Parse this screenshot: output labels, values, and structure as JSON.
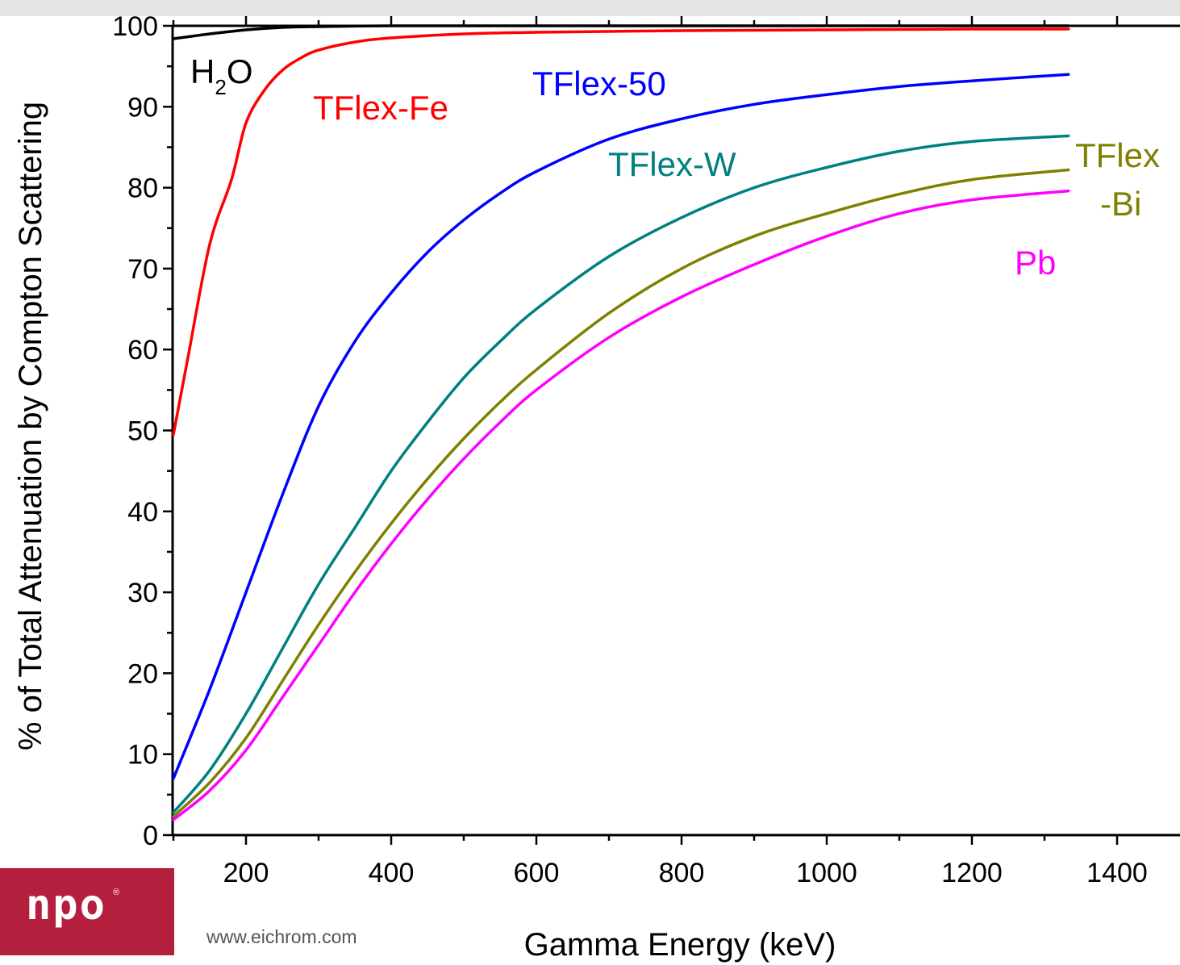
{
  "chart_data": {
    "type": "line",
    "xlabel": "Gamma Energy (keV)",
    "ylabel": "% of Total Attenuation by Compton Scattering",
    "xlim": [
      100,
      1463
    ],
    "ylim": [
      0,
      100
    ],
    "x_ticks": [
      "200",
      "400",
      "600",
      "800",
      "1000",
      "1200",
      "1400"
    ],
    "y_ticks": [
      "0",
      "10",
      "20",
      "30",
      "40",
      "50",
      "60",
      "70",
      "80",
      "90",
      "100"
    ],
    "annotations": {
      "h2o": {
        "main": "H",
        "sub": "2",
        "tail": "O"
      },
      "tflex_fe": "TFlex-Fe",
      "tflex_50": "TFlex-50",
      "tflex_w": "TFlex-W",
      "tflex_bi_1": "TFlex",
      "tflex_bi_2": "-Bi",
      "pb": "Pb"
    },
    "series": [
      {
        "key": "h2o",
        "color": "#000000",
        "x": [
          100,
          150,
          200,
          250,
          300,
          400,
          600,
          800,
          1000,
          1200,
          1333
        ],
        "y": [
          98.4,
          99.0,
          99.5,
          99.8,
          99.9,
          100,
          100,
          100,
          100,
          100,
          100
        ]
      },
      {
        "key": "tflex_fe",
        "color": "#ff0000",
        "x": [
          100,
          120,
          150,
          180,
          200,
          225,
          250,
          275,
          300,
          350,
          400,
          500,
          600,
          800,
          1000,
          1200,
          1333
        ],
        "y": [
          49.5,
          59,
          73,
          81,
          88,
          92,
          94.5,
          96,
          97,
          98,
          98.5,
          99,
          99.2,
          99.4,
          99.5,
          99.6,
          99.6
        ]
      },
      {
        "key": "tflex_50",
        "color": "#0000ff",
        "x": [
          100,
          150,
          200,
          250,
          300,
          350,
          400,
          450,
          500,
          550,
          600,
          700,
          800,
          900,
          1000,
          1100,
          1200,
          1333
        ],
        "y": [
          7,
          18,
          30,
          42,
          53,
          61,
          67,
          72,
          76,
          79.3,
          82,
          86,
          88.5,
          90.3,
          91.5,
          92.5,
          93.2,
          94
        ]
      },
      {
        "key": "tflex_w",
        "color": "#008080",
        "x": [
          100,
          150,
          200,
          250,
          300,
          350,
          400,
          450,
          500,
          550,
          600,
          700,
          800,
          900,
          1000,
          1100,
          1200,
          1333
        ],
        "y": [
          2.8,
          8,
          15,
          23,
          31,
          38,
          45,
          51,
          56.5,
          61,
          65,
          71.5,
          76.3,
          80,
          82.5,
          84.5,
          85.7,
          86.4
        ]
      },
      {
        "key": "tflex_bi",
        "color": "#808000",
        "x": [
          100,
          150,
          200,
          250,
          300,
          350,
          400,
          450,
          500,
          550,
          600,
          700,
          800,
          900,
          1000,
          1100,
          1200,
          1333
        ],
        "y": [
          2.3,
          6.5,
          12,
          19,
          26,
          32.5,
          38.5,
          44,
          49,
          53.5,
          57.5,
          64.5,
          70,
          74,
          76.8,
          79.2,
          81,
          82.2
        ]
      },
      {
        "key": "pb",
        "color": "#ff00ff",
        "x": [
          100,
          150,
          200,
          250,
          300,
          350,
          400,
          450,
          500,
          550,
          600,
          700,
          800,
          900,
          1000,
          1100,
          1200,
          1333
        ],
        "y": [
          1.9,
          5.5,
          10.5,
          17,
          23.5,
          30,
          36,
          41.5,
          46.5,
          51,
          55,
          61.5,
          66.5,
          70.5,
          74,
          76.8,
          78.5,
          79.6
        ]
      }
    ]
  },
  "branding": {
    "logo_text": "npo",
    "logo_mark": "®",
    "website": "www.eichrom.com"
  }
}
